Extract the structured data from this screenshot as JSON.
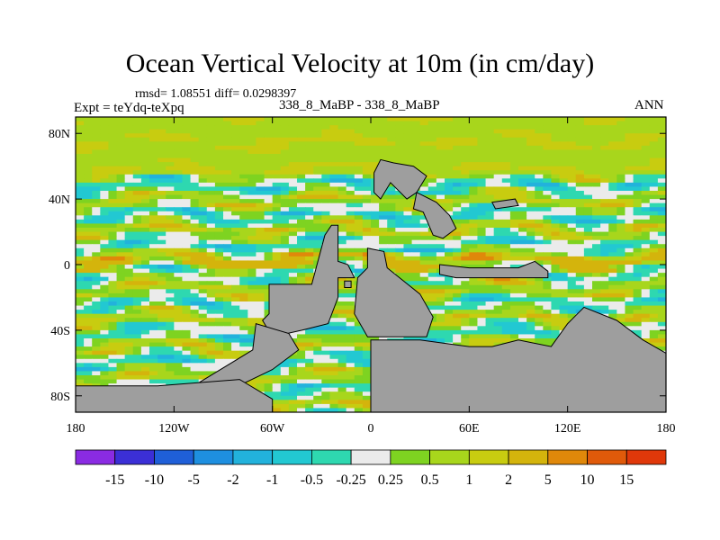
{
  "header": {
    "title": "Ocean Vertical Velocity at 10m (in cm/day)",
    "stats": "rmsd= 1.08551 diff= 0.0298397",
    "experiment": "Expt = teYdq-teXpq",
    "cases": "338_8_MaBP - 338_8_MaBP",
    "season": "ANN"
  },
  "chart_data": {
    "type": "heatmap",
    "title": "Ocean Vertical Velocity at 10m (in cm/day)",
    "xlabel": "",
    "ylabel": "",
    "xlim": [
      -180,
      180
    ],
    "ylim": [
      -90,
      90
    ],
    "x_ticks": [
      {
        "value": -180,
        "label": "180"
      },
      {
        "value": -120,
        "label": "120W"
      },
      {
        "value": -60,
        "label": "60W"
      },
      {
        "value": 0,
        "label": "0"
      },
      {
        "value": 60,
        "label": "60E"
      },
      {
        "value": 120,
        "label": "120E"
      },
      {
        "value": 180,
        "label": "180"
      }
    ],
    "y_ticks": [
      {
        "value": 80,
        "label": "80N"
      },
      {
        "value": 40,
        "label": "40N"
      },
      {
        "value": 0,
        "label": "0"
      },
      {
        "value": -40,
        "label": "40S"
      },
      {
        "value": -80,
        "label": "80S"
      }
    ],
    "colorbar": {
      "levels": [
        "-15",
        "-10",
        "-5",
        "-2",
        "-1",
        "-0.5",
        "-0.25",
        "0.25",
        "0.5",
        "1",
        "2",
        "5",
        "10",
        "15"
      ],
      "colors": [
        "#8a2be2",
        "#3b2fd6",
        "#1f5fd8",
        "#1e8fe0",
        "#22b2dc",
        "#22c8d2",
        "#2ed8b0",
        "#ebebeb",
        "#7ed321",
        "#a8d61c",
        "#c8cc10",
        "#d4b40c",
        "#e0880a",
        "#e05a0a",
        "#e0380a"
      ],
      "land_color": "#9e9e9e"
    }
  }
}
